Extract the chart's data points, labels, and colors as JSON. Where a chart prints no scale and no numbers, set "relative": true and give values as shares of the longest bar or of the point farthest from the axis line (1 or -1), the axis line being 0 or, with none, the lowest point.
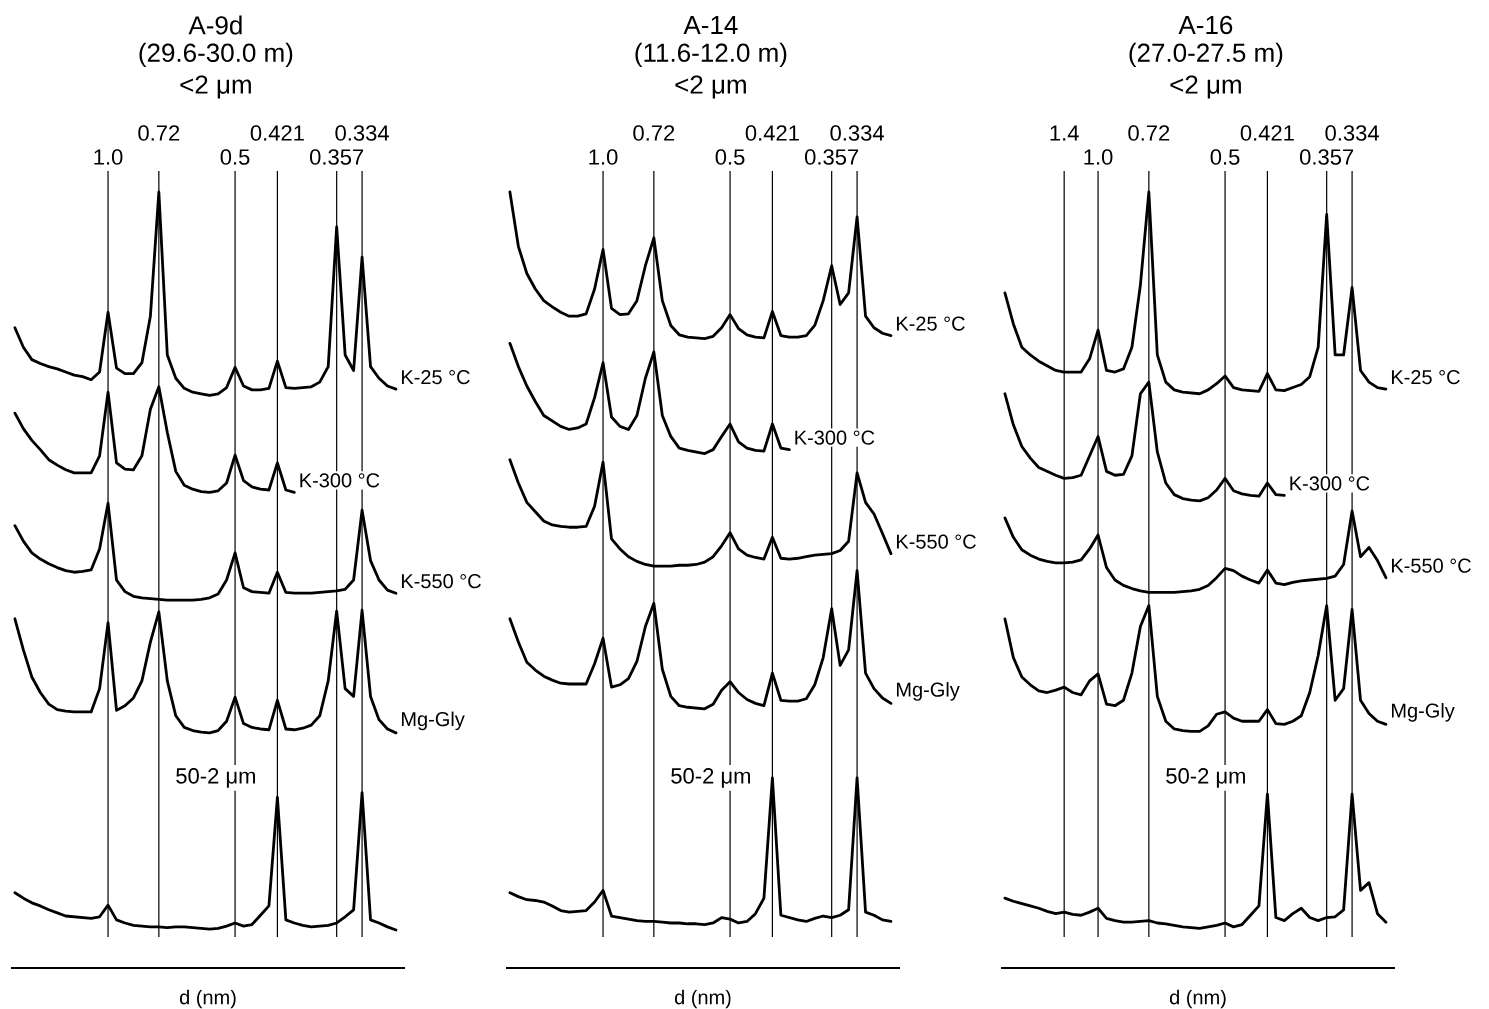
{
  "chart_data": [
    {
      "type": "line",
      "relative": true,
      "title": "A-9d",
      "subtitle": "(29.6-30.0 m)",
      "annotations": [
        "<2 μm"
      ],
      "xlabel": "d (nm)",
      "grid": "x",
      "categories": [
        null,
        null,
        null,
        null,
        null,
        null,
        null,
        null,
        null,
        null,
        null,
        "1.0",
        null,
        null,
        null,
        null,
        null,
        "0.72",
        null,
        null,
        null,
        null,
        null,
        null,
        null,
        null,
        "0.5",
        null,
        null,
        null,
        null,
        "0.421",
        null,
        null,
        null,
        null,
        null,
        null,
        "0.357",
        null,
        null,
        "0.334",
        null,
        null,
        null,
        null
      ],
      "series": [
        {
          "name": "K-25 °C",
          "color": "#000000",
          "values": [
            0.825,
            0.8,
            0.784,
            0.779,
            0.775,
            0.772,
            0.768,
            0.764,
            0.762,
            0.758,
            0.768,
            0.845,
            0.773,
            0.766,
            0.766,
            0.78,
            0.84,
            1.0,
            0.79,
            0.76,
            0.747,
            0.742,
            0.74,
            0.738,
            0.74,
            0.748,
            0.774,
            0.75,
            0.745,
            0.745,
            0.747,
            0.782,
            0.748,
            0.747,
            0.748,
            0.749,
            0.755,
            0.775,
            0.955,
            0.79,
            0.77,
            0.916,
            0.775,
            0.76,
            0.75,
            0.746
          ]
        },
        {
          "name": "K-300 °C",
          "color": "#000000",
          "values": [
            0.715,
            0.695,
            0.68,
            0.668,
            0.655,
            0.648,
            0.642,
            0.638,
            0.638,
            0.638,
            0.66,
            0.742,
            0.651,
            0.643,
            0.642,
            0.66,
            0.72,
            0.749,
            0.69,
            0.64,
            0.622,
            0.617,
            0.614,
            0.613,
            0.615,
            0.625,
            0.661,
            0.628,
            0.62,
            0.617,
            0.616,
            0.651,
            0.616,
            0.613,
            null,
            null,
            null,
            null,
            null,
            null,
            null,
            null,
            null,
            null,
            null,
            null
          ]
        },
        {
          "name": "K-550 °C",
          "color": "#000000",
          "values": [
            0.57,
            0.55,
            0.535,
            0.527,
            0.521,
            0.516,
            0.512,
            0.51,
            0.511,
            0.513,
            0.54,
            0.599,
            0.5,
            0.485,
            0.479,
            0.477,
            0.476,
            0.475,
            0.474,
            0.474,
            0.474,
            0.474,
            0.475,
            0.477,
            0.482,
            0.5,
            0.535,
            0.49,
            0.485,
            0.484,
            0.483,
            0.51,
            0.484,
            0.483,
            0.483,
            0.483,
            0.484,
            0.485,
            0.486,
            0.488,
            0.5,
            0.59,
            0.525,
            0.5,
            0.487,
            0.483
          ]
        },
        {
          "name": "Mg-Gly",
          "color": "#000000",
          "values": [
            0.45,
            0.41,
            0.375,
            0.355,
            0.34,
            0.333,
            0.331,
            0.33,
            0.33,
            0.33,
            0.36,
            0.445,
            0.332,
            0.338,
            0.348,
            0.37,
            0.42,
            0.459,
            0.37,
            0.325,
            0.31,
            0.306,
            0.304,
            0.303,
            0.306,
            0.318,
            0.349,
            0.315,
            0.31,
            0.308,
            0.307,
            0.345,
            0.308,
            0.307,
            0.309,
            0.313,
            0.325,
            0.37,
            0.46,
            0.36,
            0.35,
            0.461,
            0.35,
            0.32,
            0.308,
            0.303
          ]
        },
        {
          "name": "50-2 μm",
          "color": "#000000",
          "values": [
            0.097,
            0.09,
            0.084,
            0.08,
            0.075,
            0.071,
            0.067,
            0.066,
            0.065,
            0.064,
            0.066,
            0.081,
            0.062,
            0.058,
            0.055,
            0.054,
            0.053,
            0.053,
            0.052,
            0.053,
            0.053,
            0.052,
            0.051,
            0.05,
            0.051,
            0.054,
            0.058,
            0.054,
            0.056,
            0.068,
            0.08,
            0.22,
            0.062,
            0.058,
            0.055,
            0.053,
            0.054,
            0.055,
            0.058,
            0.066,
            0.075,
            0.226,
            0.062,
            0.058,
            0.053,
            0.049
          ]
        }
      ]
    },
    {
      "type": "line",
      "relative": true,
      "title": "A-14",
      "subtitle": "(11.6-12.0 m)",
      "annotations": [
        "<2 μm"
      ],
      "xlabel": "d (nm)",
      "grid": "x",
      "categories": [
        null,
        null,
        null,
        null,
        null,
        null,
        null,
        null,
        null,
        null,
        null,
        "1.0",
        null,
        null,
        null,
        null,
        null,
        "0.72",
        null,
        null,
        null,
        null,
        null,
        null,
        null,
        null,
        "0.5",
        null,
        null,
        null,
        null,
        "0.421",
        null,
        null,
        null,
        null,
        null,
        null,
        "0.357",
        null,
        null,
        "0.334",
        null,
        null,
        null,
        null
      ],
      "series": [
        {
          "name": "K-25 °C",
          "color": "#000000",
          "values": [
            1.0,
            0.93,
            0.895,
            0.875,
            0.86,
            0.852,
            0.845,
            0.84,
            0.84,
            0.843,
            0.875,
            0.926,
            0.85,
            0.842,
            0.843,
            0.86,
            0.905,
            0.941,
            0.86,
            0.828,
            0.816,
            0.813,
            0.812,
            0.811,
            0.814,
            0.825,
            0.842,
            0.824,
            0.816,
            0.813,
            0.812,
            0.846,
            0.815,
            0.813,
            0.813,
            0.815,
            0.828,
            0.86,
            0.905,
            0.855,
            0.87,
            0.968,
            0.84,
            0.825,
            0.818,
            0.815
          ]
        },
        {
          "name": "K-300 °C",
          "color": "#000000",
          "values": [
            0.805,
            0.775,
            0.75,
            0.73,
            0.712,
            0.705,
            0.698,
            0.694,
            0.696,
            0.701,
            0.735,
            0.78,
            0.71,
            0.698,
            0.694,
            0.712,
            0.76,
            0.794,
            0.712,
            0.685,
            0.67,
            0.667,
            0.665,
            0.663,
            0.668,
            0.685,
            0.701,
            0.678,
            0.67,
            0.667,
            0.666,
            0.701,
            0.67,
            0.668,
            null,
            null,
            null,
            null,
            null,
            null,
            null,
            null,
            null,
            null,
            null,
            null
          ]
        },
        {
          "name": "K-550 °C",
          "color": "#000000",
          "values": [
            0.655,
            0.625,
            0.6,
            0.588,
            0.576,
            0.571,
            0.569,
            0.568,
            0.568,
            0.569,
            0.595,
            0.652,
            0.553,
            0.54,
            0.53,
            0.524,
            0.52,
            0.518,
            0.518,
            0.518,
            0.519,
            0.519,
            0.52,
            0.523,
            0.53,
            0.544,
            0.561,
            0.54,
            0.532,
            0.529,
            0.527,
            0.555,
            0.528,
            0.527,
            0.528,
            0.53,
            0.532,
            0.533,
            0.534,
            0.538,
            0.55,
            0.638,
            0.6,
            0.585,
            0.56,
            0.534
          ]
        },
        {
          "name": "Mg-Gly",
          "color": "#000000",
          "values": [
            0.45,
            0.42,
            0.394,
            0.384,
            0.376,
            0.371,
            0.367,
            0.366,
            0.366,
            0.366,
            0.392,
            0.425,
            0.362,
            0.365,
            0.373,
            0.395,
            0.44,
            0.47,
            0.385,
            0.35,
            0.338,
            0.336,
            0.335,
            0.334,
            0.34,
            0.358,
            0.369,
            0.355,
            0.346,
            0.341,
            0.338,
            0.38,
            0.345,
            0.344,
            0.344,
            0.347,
            0.365,
            0.4,
            0.463,
            0.39,
            0.41,
            0.512,
            0.38,
            0.36,
            0.348,
            0.341
          ]
        },
        {
          "name": "50-2 μm",
          "color": "#000000",
          "values": [
            0.097,
            0.092,
            0.088,
            0.087,
            0.085,
            0.08,
            0.074,
            0.072,
            0.073,
            0.074,
            0.085,
            0.1,
            0.067,
            0.065,
            0.063,
            0.061,
            0.06,
            0.06,
            0.059,
            0.058,
            0.058,
            0.057,
            0.057,
            0.056,
            0.058,
            0.065,
            0.063,
            0.058,
            0.06,
            0.07,
            0.09,
            0.245,
            0.068,
            0.065,
            0.062,
            0.06,
            0.064,
            0.067,
            0.065,
            0.068,
            0.075,
            0.245,
            0.072,
            0.068,
            0.062,
            0.06
          ]
        }
      ]
    },
    {
      "type": "line",
      "relative": true,
      "title": "A-16",
      "subtitle": "(27.0-27.5 m)",
      "annotations": [
        "<2 μm"
      ],
      "xlabel": "d (nm)",
      "grid": "x",
      "categories": [
        null,
        null,
        null,
        null,
        null,
        null,
        null,
        "1.4",
        null,
        null,
        null,
        "1.0",
        null,
        null,
        null,
        null,
        null,
        "0.72",
        null,
        null,
        null,
        null,
        null,
        null,
        null,
        null,
        "0.5",
        null,
        null,
        null,
        null,
        "0.421",
        null,
        null,
        null,
        null,
        null,
        null,
        "0.357",
        null,
        null,
        "0.334",
        null,
        null,
        null,
        null
      ],
      "series": [
        {
          "name": "K-25 °C",
          "color": "#000000",
          "values": [
            0.87,
            0.83,
            0.8,
            0.79,
            0.782,
            0.776,
            0.77,
            0.768,
            0.768,
            0.768,
            0.785,
            0.822,
            0.77,
            0.768,
            0.772,
            0.8,
            0.88,
            1.0,
            0.79,
            0.755,
            0.745,
            0.742,
            0.741,
            0.74,
            0.745,
            0.753,
            0.763,
            0.748,
            0.745,
            0.744,
            0.743,
            0.766,
            0.745,
            0.744,
            0.748,
            0.752,
            0.762,
            0.8,
            0.971,
            0.79,
            0.79,
            0.877,
            0.77,
            0.755,
            0.748,
            0.746
          ]
        },
        {
          "name": "K-300 °C",
          "color": "#000000",
          "values": [
            0.74,
            0.7,
            0.672,
            0.657,
            0.645,
            0.64,
            0.635,
            0.631,
            0.632,
            0.635,
            0.66,
            0.685,
            0.64,
            0.635,
            0.636,
            0.66,
            0.74,
            0.755,
            0.665,
            0.625,
            0.61,
            0.605,
            0.603,
            0.602,
            0.606,
            0.616,
            0.631,
            0.615,
            0.611,
            0.609,
            0.608,
            0.625,
            0.61,
            0.609,
            null,
            null,
            null,
            null,
            null,
            null,
            null,
            null,
            null,
            null,
            null,
            null
          ]
        },
        {
          "name": "K-550 °C",
          "color": "#000000",
          "values": [
            0.58,
            0.555,
            0.539,
            0.532,
            0.527,
            0.524,
            0.522,
            0.522,
            0.523,
            0.526,
            0.54,
            0.558,
            0.516,
            0.5,
            0.493,
            0.489,
            0.486,
            0.484,
            0.484,
            0.484,
            0.484,
            0.485,
            0.486,
            0.488,
            0.493,
            0.503,
            0.515,
            0.512,
            0.505,
            0.5,
            0.496,
            0.513,
            0.496,
            0.494,
            0.497,
            0.499,
            0.5,
            0.501,
            0.502,
            0.505,
            0.52,
            0.589,
            0.53,
            0.542,
            0.525,
            0.503
          ]
        },
        {
          "name": "Mg-Gly",
          "color": "#000000",
          "values": [
            0.45,
            0.4,
            0.375,
            0.365,
            0.357,
            0.355,
            0.358,
            0.362,
            0.355,
            0.352,
            0.37,
            0.379,
            0.34,
            0.338,
            0.345,
            0.38,
            0.44,
            0.467,
            0.35,
            0.318,
            0.308,
            0.306,
            0.305,
            0.305,
            0.312,
            0.327,
            0.33,
            0.322,
            0.318,
            0.318,
            0.318,
            0.333,
            0.315,
            0.314,
            0.318,
            0.325,
            0.355,
            0.403,
            0.467,
            0.345,
            0.36,
            0.462,
            0.345,
            0.328,
            0.318,
            0.314
          ]
        },
        {
          "name": "50-2 μm",
          "color": "#000000",
          "values": [
            0.09,
            0.086,
            0.083,
            0.08,
            0.077,
            0.073,
            0.07,
            0.072,
            0.069,
            0.068,
            0.072,
            0.077,
            0.064,
            0.061,
            0.059,
            0.059,
            0.06,
            0.061,
            0.058,
            0.057,
            0.055,
            0.053,
            0.052,
            0.051,
            0.053,
            0.055,
            0.058,
            0.053,
            0.056,
            0.068,
            0.08,
            0.224,
            0.065,
            0.061,
            0.07,
            0.077,
            0.065,
            0.061,
            0.065,
            0.066,
            0.075,
            0.224,
            0.1,
            0.11,
            0.07,
            0.059
          ]
        }
      ]
    }
  ]
}
